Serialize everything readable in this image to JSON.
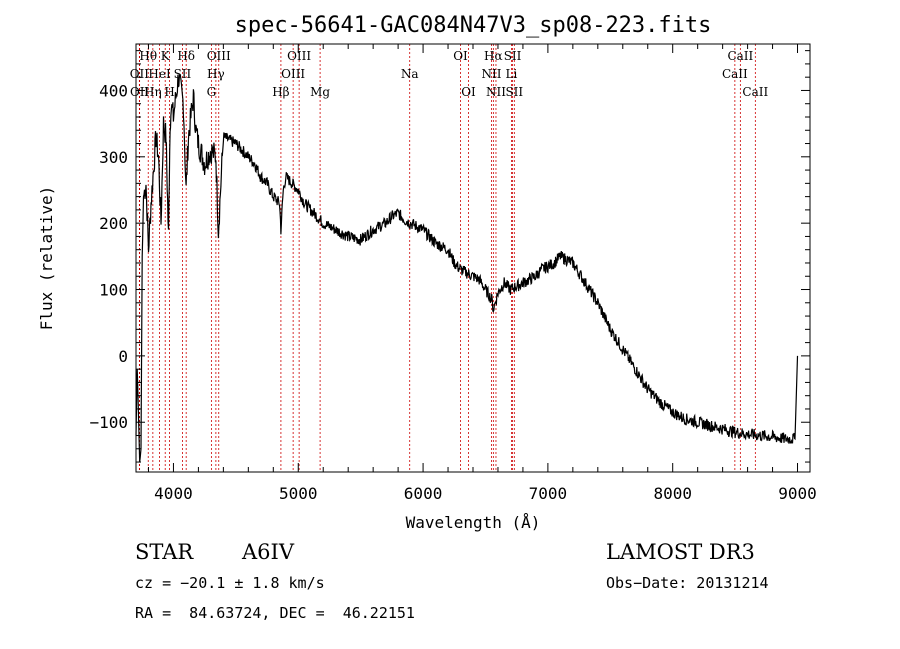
{
  "chart_data": {
    "type": "line",
    "title": "spec-56641-GAC084N47V3_sp08-223.fits",
    "xlabel": "Wavelength (Å)",
    "ylabel": "Flux (relative)",
    "xlim": [
      3700,
      9100
    ],
    "ylim": [
      -175,
      470
    ],
    "xticks": [
      4000,
      5000,
      6000,
      7000,
      8000,
      9000
    ],
    "yticks": [
      -100,
      0,
      100,
      200,
      300,
      400
    ],
    "series": [
      {
        "name": "flux",
        "x": [
          3700,
          3710,
          3720,
          3730,
          3740,
          3750,
          3760,
          3780,
          3800,
          3820,
          3840,
          3860,
          3880,
          3900,
          3920,
          3940,
          3950,
          3960,
          3970,
          3980,
          4000,
          4020,
          4040,
          4060,
          4080,
          4101,
          4120,
          4140,
          4160,
          4180,
          4200,
          4250,
          4300,
          4340,
          4360,
          4400,
          4450,
          4500,
          4550,
          4600,
          4650,
          4700,
          4750,
          4800,
          4850,
          4861,
          4880,
          4900,
          4950,
          5000,
          5050,
          5100,
          5150,
          5200,
          5300,
          5400,
          5500,
          5600,
          5700,
          5750,
          5800,
          5850,
          5900,
          5950,
          6000,
          6050,
          6100,
          6150,
          6200,
          6250,
          6300,
          6350,
          6400,
          6450,
          6500,
          6550,
          6563,
          6600,
          6650,
          6700,
          6750,
          6800,
          6850,
          6900,
          6950,
          7000,
          7050,
          7100,
          7150,
          7200,
          7300,
          7400,
          7500,
          7600,
          7700,
          7800,
          7900,
          8000,
          8100,
          8200,
          8300,
          8400,
          8500,
          8600,
          8700,
          8800,
          8900,
          8980,
          9000
        ],
        "y": [
          -120,
          -20,
          -90,
          -160,
          -140,
          150,
          240,
          260,
          160,
          230,
          280,
          330,
          300,
          200,
          350,
          330,
          260,
          180,
          320,
          380,
          360,
          390,
          420,
          400,
          380,
          250,
          330,
          360,
          390,
          340,
          320,
          290,
          310,
          300,
          190,
          330,
          325,
          320,
          310,
          300,
          290,
          270,
          260,
          240,
          230,
          190,
          250,
          270,
          260,
          250,
          230,
          220,
          210,
          200,
          190,
          180,
          175,
          190,
          200,
          210,
          215,
          205,
          200,
          195,
          190,
          180,
          170,
          165,
          160,
          140,
          130,
          125,
          120,
          115,
          100,
          85,
          70,
          95,
          110,
          100,
          105,
          110,
          115,
          120,
          130,
          135,
          140,
          150,
          145,
          140,
          110,
          80,
          40,
          10,
          -20,
          -50,
          -70,
          -85,
          -95,
          -100,
          -105,
          -110,
          -115,
          -118,
          -120,
          -122,
          -125,
          -125,
          0
        ]
      }
    ],
    "spectral_lines": [
      {
        "name": "Hθ",
        "wavelength": 3798,
        "tier": 0
      },
      {
        "name": "OII",
        "wavelength": 3727,
        "tier": 1
      },
      {
        "name": "OII",
        "wavelength": 3729,
        "tier": 2
      },
      {
        "name": "Hη",
        "wavelength": 3835,
        "tier": 2
      },
      {
        "name": "HeI",
        "wavelength": 3889,
        "tier": 1
      },
      {
        "name": "K",
        "wavelength": 3934,
        "tier": 0
      },
      {
        "name": "H",
        "wavelength": 3969,
        "tier": 2
      },
      {
        "name": "SII",
        "wavelength": 4072,
        "tier": 1
      },
      {
        "name": "Hδ",
        "wavelength": 4102,
        "tier": 0
      },
      {
        "name": "OIII",
        "wavelength": 4363,
        "tier": 0
      },
      {
        "name": "Hγ",
        "wavelength": 4340,
        "tier": 1
      },
      {
        "name": "G",
        "wavelength": 4304,
        "tier": 2
      },
      {
        "name": "Hβ",
        "wavelength": 4861,
        "tier": 2
      },
      {
        "name": "OIII",
        "wavelength": 4959,
        "tier": 1
      },
      {
        "name": "OIII",
        "wavelength": 5007,
        "tier": 0
      },
      {
        "name": "Mg",
        "wavelength": 5175,
        "tier": 2
      },
      {
        "name": "Na",
        "wavelength": 5893,
        "tier": 1
      },
      {
        "name": "OI",
        "wavelength": 6300,
        "tier": 0
      },
      {
        "name": "OI",
        "wavelength": 6364,
        "tier": 2
      },
      {
        "name": "Hα",
        "wavelength": 6563,
        "tier": 0
      },
      {
        "name": "NII",
        "wavelength": 6548,
        "tier": 1
      },
      {
        "name": "NII",
        "wavelength": 6584,
        "tier": 2
      },
      {
        "name": "SII",
        "wavelength": 6717,
        "tier": 0
      },
      {
        "name": "Li",
        "wavelength": 6708,
        "tier": 1
      },
      {
        "name": "SII",
        "wavelength": 6731,
        "tier": 2
      },
      {
        "name": "CaII",
        "wavelength": 8542,
        "tier": 0
      },
      {
        "name": "CaII",
        "wavelength": 8498,
        "tier": 1
      },
      {
        "name": "CaII",
        "wavelength": 8662,
        "tier": 2
      }
    ]
  },
  "info": {
    "object_type": "STAR",
    "subclass": "A6IV",
    "survey": "LAMOST DR3",
    "cz": "cz = −20.1 ± 1.8 km/s",
    "obs_date": "Obs−Date: 20131214",
    "coords": "RA =  84.63724, DEC =  46.22151"
  },
  "colors": {
    "line": "#000000",
    "spectral_line": "#cc0000"
  }
}
